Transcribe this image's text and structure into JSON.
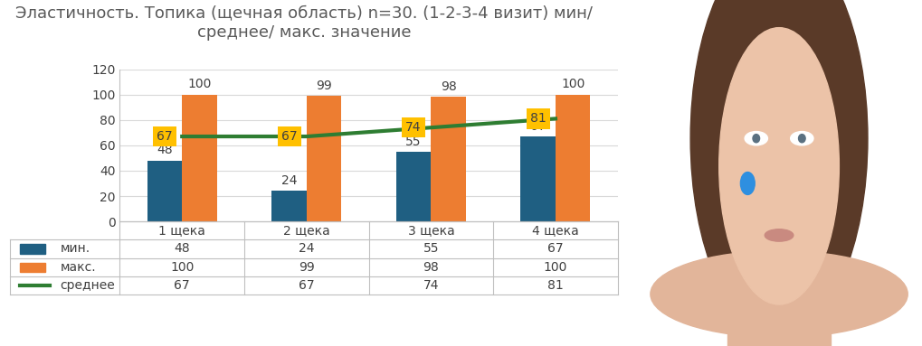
{
  "chart_data": {
    "type": "bar",
    "title": "Эластичность. Топика (щечная область) n=30. (1-2-3-4 визит) мин/ среднее/ макс. значение",
    "categories": [
      "1 щека",
      "2 щека",
      "3 щека",
      "4 щека"
    ],
    "series": [
      {
        "name": "мин.",
        "type": "bar",
        "color": "#1f5f82",
        "values": [
          48,
          24,
          55,
          67
        ]
      },
      {
        "name": "макс.",
        "type": "bar",
        "color": "#ed7d31",
        "values": [
          100,
          99,
          98,
          100
        ]
      },
      {
        "name": "среднее",
        "type": "line",
        "color": "#2e7d32",
        "values": [
          67,
          67,
          74,
          81
        ]
      }
    ],
    "ylim": [
      0,
      120
    ],
    "yticks": [
      0,
      20,
      40,
      60,
      80,
      100,
      120
    ],
    "grid": true,
    "data_labels": true
  }
}
